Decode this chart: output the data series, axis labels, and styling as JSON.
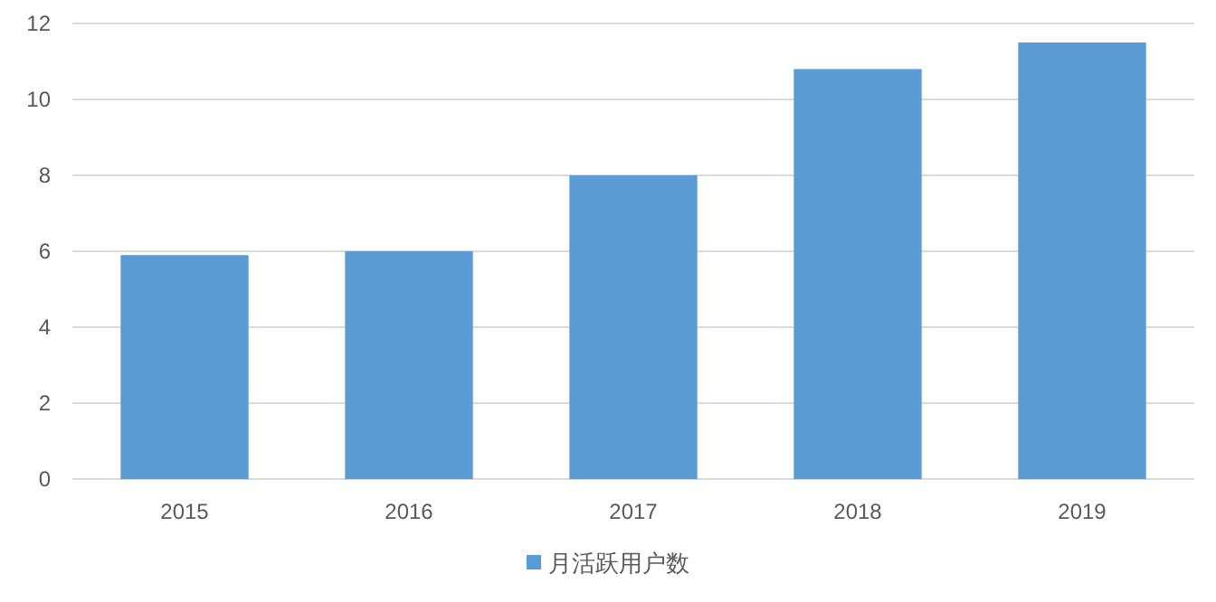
{
  "chart_data": {
    "type": "bar",
    "categories": [
      "2015",
      "2016",
      "2017",
      "2018",
      "2019"
    ],
    "series": [
      {
        "name": "月活跃用户数",
        "color": "#5b9bd5",
        "values": [
          5.9,
          6.0,
          8.0,
          10.8,
          11.5
        ]
      }
    ],
    "ylim": [
      0,
      12
    ],
    "yticks": [
      0,
      2,
      4,
      6,
      8,
      10,
      12
    ],
    "grid": "y",
    "legend": "bottom"
  }
}
